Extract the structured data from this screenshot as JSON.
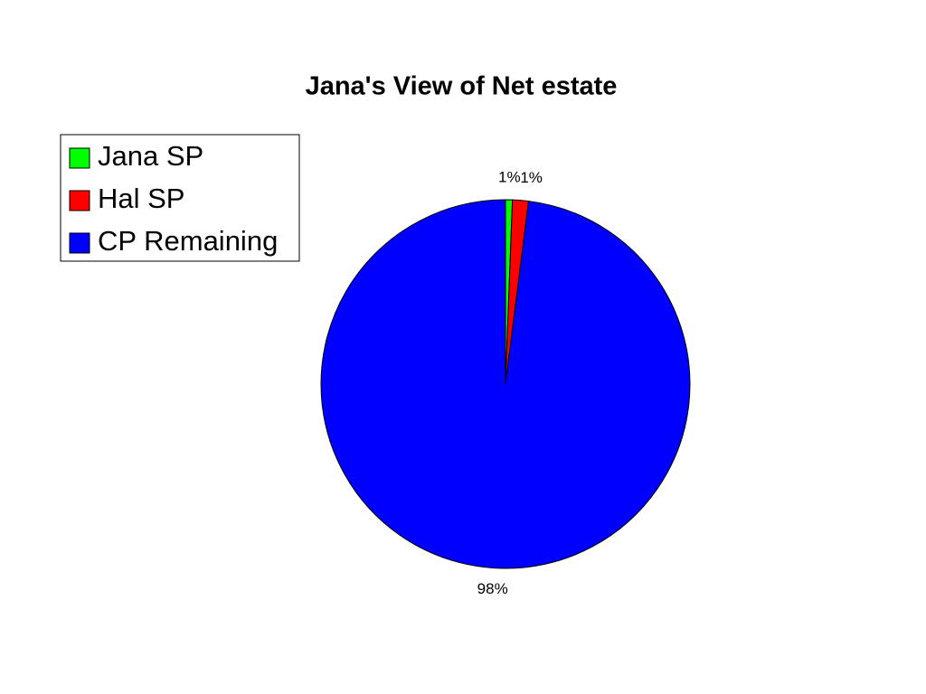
{
  "chart_data": {
    "type": "pie",
    "title": "Jana's View of Net estate",
    "categories": [
      "Jana SP",
      "Hal SP",
      "CP Remaining"
    ],
    "values": [
      0.6,
      1.4,
      98
    ],
    "value_labels": [
      "1%",
      "1%",
      "98%"
    ],
    "colors": [
      "#00ff00",
      "#ff0000",
      "#0000ff"
    ],
    "legend": "top-left"
  }
}
